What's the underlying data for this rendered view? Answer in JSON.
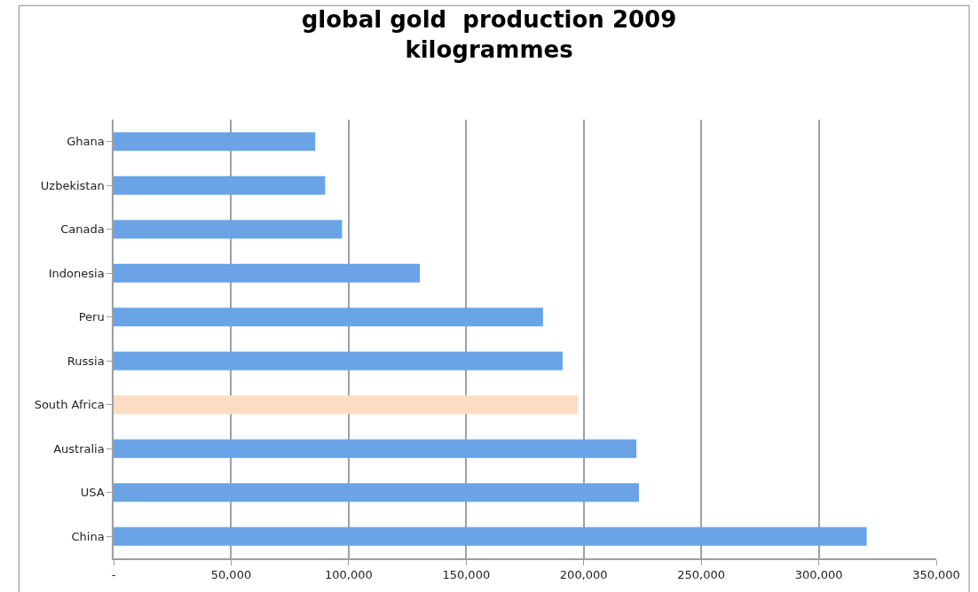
{
  "chart_data": {
    "type": "bar",
    "orientation": "horizontal",
    "title": "global gold  production 2009\nkilogrammes",
    "categories": [
      "Ghana",
      "Uzbekistan",
      "Canada",
      "Indonesia",
      "Peru",
      "Russia",
      "South Africa",
      "Australia",
      "USA",
      "China"
    ],
    "values": [
      85800,
      90000,
      97200,
      130300,
      182700,
      191000,
      197500,
      222400,
      223500,
      320400
    ],
    "colors": [
      "#6aa3e6",
      "#6aa3e6",
      "#6aa3e6",
      "#6aa3e6",
      "#6aa3e6",
      "#6aa3e6",
      "#fcdcc2",
      "#6aa3e6",
      "#6aa3e6",
      "#6aa3e6"
    ],
    "xlim": [
      0,
      350000
    ],
    "xticks": [
      {
        "value": 0,
        "label": "-"
      },
      {
        "value": 50000,
        "label": "50,000"
      },
      {
        "value": 100000,
        "label": "100,000"
      },
      {
        "value": 150000,
        "label": "150,000"
      },
      {
        "value": 200000,
        "label": "200,000"
      },
      {
        "value": 250000,
        "label": "250,000"
      },
      {
        "value": 300000,
        "label": "300,000"
      },
      {
        "value": 350000,
        "label": "350,000"
      }
    ],
    "grid": "x",
    "legend": false
  }
}
